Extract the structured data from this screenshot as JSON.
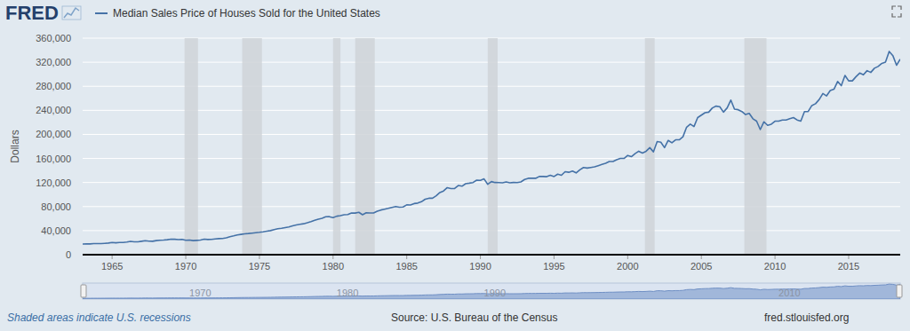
{
  "chart_data": {
    "type": "line",
    "logo": "FRED",
    "ylabel": "Dollars",
    "note": "Shaded areas indicate U.S. recessions",
    "source": "Source: U.S. Bureau of the Census",
    "website": "fred.stlouisfed.org",
    "grid": true,
    "xlim": [
      1963,
      2018.5
    ],
    "xticks": [
      1965,
      1970,
      1975,
      1980,
      1985,
      1990,
      1995,
      2000,
      2005,
      2010,
      2015
    ],
    "ylim": [
      0,
      360000
    ],
    "yticks": [
      0,
      {
        "value": 40000,
        "label": "40,000"
      },
      {
        "value": 80000,
        "label": "80,000"
      },
      {
        "value": 120000,
        "label": "120,000"
      },
      {
        "value": 160000,
        "label": "160,000"
      },
      {
        "value": 200000,
        "label": "200,000"
      },
      {
        "value": 240000,
        "label": "240,000"
      },
      {
        "value": 280000,
        "label": "280,000"
      },
      {
        "value": 320000,
        "label": "320,000"
      },
      {
        "value": 360000,
        "label": "360,000"
      }
    ],
    "navigator_xticks": [
      1970,
      1980,
      1990,
      2010
    ],
    "recessions": [
      {
        "start": 1969.92,
        "end": 1970.83
      },
      {
        "start": 1973.83,
        "end": 1975.17
      },
      {
        "start": 1980.0,
        "end": 1980.5
      },
      {
        "start": 1981.5,
        "end": 1982.83
      },
      {
        "start": 1990.5,
        "end": 1991.17
      },
      {
        "start": 2001.17,
        "end": 2001.83
      },
      {
        "start": 2007.92,
        "end": 2009.42
      }
    ],
    "x": [
      1963,
      1963.25,
      1963.5,
      1963.75,
      1964,
      1964.25,
      1964.5,
      1964.75,
      1965,
      1965.25,
      1965.5,
      1965.75,
      1966,
      1966.25,
      1966.5,
      1966.75,
      1967,
      1967.25,
      1967.5,
      1967.75,
      1968,
      1968.25,
      1968.5,
      1968.75,
      1969,
      1969.25,
      1969.5,
      1969.75,
      1970,
      1970.25,
      1970.5,
      1970.75,
      1971,
      1971.25,
      1971.5,
      1971.75,
      1972,
      1972.25,
      1972.5,
      1972.75,
      1973,
      1973.25,
      1973.5,
      1973.75,
      1974,
      1974.25,
      1974.5,
      1974.75,
      1975,
      1975.25,
      1975.5,
      1975.75,
      1976,
      1976.25,
      1976.5,
      1976.75,
      1977,
      1977.25,
      1977.5,
      1977.75,
      1978,
      1978.25,
      1978.5,
      1978.75,
      1979,
      1979.25,
      1979.5,
      1979.75,
      1980,
      1980.25,
      1980.5,
      1980.75,
      1981,
      1981.25,
      1981.5,
      1981.75,
      1982,
      1982.25,
      1982.5,
      1982.75,
      1983,
      1983.25,
      1983.5,
      1983.75,
      1984,
      1984.25,
      1984.5,
      1984.75,
      1985,
      1985.25,
      1985.5,
      1985.75,
      1986,
      1986.25,
      1986.5,
      1986.75,
      1987,
      1987.25,
      1987.5,
      1987.75,
      1988,
      1988.25,
      1988.5,
      1988.75,
      1989,
      1989.25,
      1989.5,
      1989.75,
      1990,
      1990.25,
      1990.5,
      1990.75,
      1991,
      1991.25,
      1991.5,
      1991.75,
      1992,
      1992.25,
      1992.5,
      1992.75,
      1993,
      1993.25,
      1993.5,
      1993.75,
      1994,
      1994.25,
      1994.5,
      1994.75,
      1995,
      1995.25,
      1995.5,
      1995.75,
      1996,
      1996.25,
      1996.5,
      1996.75,
      1997,
      1997.25,
      1997.5,
      1997.75,
      1998,
      1998.25,
      1998.5,
      1998.75,
      1999,
      1999.25,
      1999.5,
      1999.75,
      2000,
      2000.25,
      2000.5,
      2000.75,
      2001,
      2001.25,
      2001.5,
      2001.75,
      2002,
      2002.25,
      2002.5,
      2002.75,
      2003,
      2003.25,
      2003.5,
      2003.75,
      2004,
      2004.25,
      2004.5,
      2004.75,
      2005,
      2005.25,
      2005.5,
      2005.75,
      2006,
      2006.25,
      2006.5,
      2006.75,
      2007,
      2007.25,
      2007.5,
      2007.75,
      2008,
      2008.25,
      2008.5,
      2008.75,
      2009,
      2009.25,
      2009.5,
      2009.75,
      2010,
      2010.25,
      2010.5,
      2010.75,
      2011,
      2011.25,
      2011.5,
      2011.75,
      2012,
      2012.25,
      2012.5,
      2012.75,
      2013,
      2013.25,
      2013.5,
      2013.75,
      2014,
      2014.25,
      2014.5,
      2014.75,
      2015,
      2015.25,
      2015.5,
      2015.75,
      2016,
      2016.25,
      2016.5,
      2016.75,
      2017,
      2017.25,
      2017.5,
      2017.75,
      2018,
      2018.25,
      2018.5
    ],
    "series": [
      {
        "name": "Median Sales Price of Houses Sold for the United States",
        "color": "#4572a7",
        "values": [
          17800,
          18000,
          17900,
          18500,
          18500,
          18500,
          18900,
          19400,
          20200,
          19800,
          20200,
          20300,
          21000,
          22100,
          21500,
          21400,
          22300,
          23300,
          22600,
          22300,
          23400,
          23900,
          24300,
          24900,
          25700,
          25600,
          25000,
          25400,
          23900,
          24400,
          23400,
          23800,
          24300,
          25800,
          25300,
          25500,
          26200,
          26800,
          27000,
          28000,
          29900,
          31300,
          32900,
          33800,
          34700,
          35200,
          35900,
          36600,
          37200,
          38000,
          39000,
          40000,
          41600,
          43100,
          43900,
          45100,
          46100,
          47900,
          49400,
          50500,
          51400,
          53100,
          55000,
          57100,
          59000,
          60600,
          63100,
          63200,
          61500,
          64000,
          64900,
          66400,
          66800,
          69400,
          69200,
          70400,
          66400,
          69600,
          69300,
          69300,
          72300,
          74300,
          75600,
          77000,
          78700,
          80000,
          79000,
          79300,
          82800,
          82700,
          85000,
          85800,
          88000,
          92200,
          93800,
          93800,
          97900,
          103400,
          106000,
          111500,
          110000,
          110000,
          115000,
          113900,
          118000,
          118900,
          120000,
          123900,
          123500,
          126000,
          117000,
          121500,
          120000,
          119900,
          119500,
          121000,
          119500,
          120000,
          119900,
          121000,
          125000,
          127000,
          127000,
          127000,
          130000,
          130000,
          129700,
          132000,
          130000,
          133900,
          132000,
          138000,
          137000,
          139000,
          136000,
          141000,
          145000,
          144000,
          145000,
          146000,
          148000,
          150000,
          152000,
          155000,
          155000,
          158000,
          160000,
          160000,
          165000,
          163000,
          168000,
          172000,
          169000,
          172000,
          178000,
          171000,
          188000,
          187000,
          178000,
          190000,
          186000,
          191000,
          191000,
          196000,
          212000,
          217000,
          213000,
          228000,
          232000,
          236000,
          237000,
          244000,
          247000,
          246000,
          237000,
          244000,
          257000,
          242000,
          241000,
          238000,
          233000,
          235000,
          226000,
          222000,
          208000,
          221000,
          215000,
          217000,
          222000,
          222000,
          224000,
          224000,
          226000,
          228000,
          224000,
          222000,
          238000,
          238000,
          248000,
          251000,
          258000,
          268000,
          264000,
          273000,
          275000,
          288000,
          281000,
          298000,
          289000,
          289000,
          296000,
          302000,
          299000,
          306000,
          303000,
          310000,
          313000,
          318000,
          320000,
          338000,
          331000,
          315000,
          325000
        ]
      }
    ]
  }
}
